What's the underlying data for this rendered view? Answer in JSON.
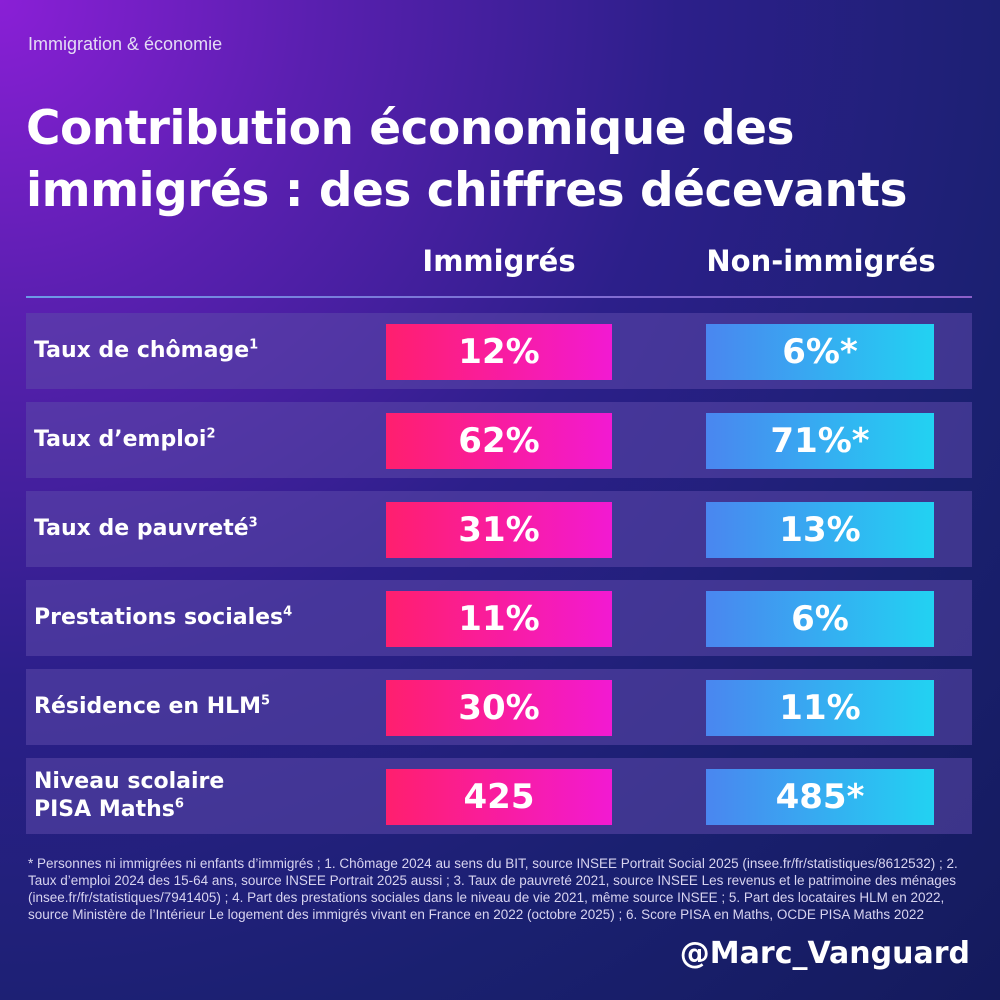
{
  "category": "Immigration & économie",
  "title": "Contribution économique des immigrés : des chiffres décevants",
  "columns": {
    "immigrants": "Immigrés",
    "non_immigrants": "Non-immigrés"
  },
  "rows": [
    {
      "label": "Taux de chômage",
      "note": "1",
      "immigrants": "12%",
      "non_immigrants": "6%*"
    },
    {
      "label": "Taux d’emploi",
      "note": "2",
      "immigrants": "62%",
      "non_immigrants": "71%*"
    },
    {
      "label": "Taux de pauvreté",
      "note": "3",
      "immigrants": "31%",
      "non_immigrants": "13%"
    },
    {
      "label": "Prestations sociales",
      "note": "4",
      "immigrants": "11%",
      "non_immigrants": "6%"
    },
    {
      "label": "Résidence en HLM",
      "note": "5",
      "immigrants": "30%",
      "non_immigrants": "11%"
    },
    {
      "label": "Niveau scolaire PISA Maths",
      "note": "6",
      "immigrants": "425",
      "non_immigrants": "485*"
    }
  ],
  "footnote": "* Personnes ni immigrées ni enfants d’immigrés ; 1. Chômage 2024 au sens du BIT, source INSEE Portrait Social 2025 (insee.fr/fr/statistiques/8612532) ; 2. Taux d’emploi 2024 des 15-64 ans, source INSEE Portrait 2025 aussi ; 3. Taux de pauvreté 2021, source INSEE Les revenus et le patrimoine des ménages (insee.fr/fr/statistiques/7941405) ; 4. Part des prestations sociales dans le niveau de vie 2021, même source INSEE ; 5. Part des locataires HLM en 2022, source Ministère de l’Intérieur Le logement des immigrés vivant en France en 2022 (octobre 2025) ; 6. Score PISA en Maths, OCDE PISA Maths 2022",
  "handle": "@Marc_Vanguard",
  "colors": {
    "immigrants_bar": "#ff1f6e",
    "non_immigrants_bar": "#22d2f2",
    "row_background": "#5c48aa"
  }
}
